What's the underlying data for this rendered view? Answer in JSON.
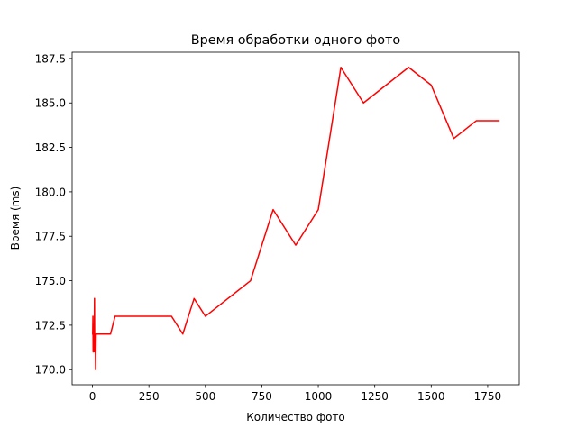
{
  "chart_data": {
    "type": "line",
    "title": "Время обработки одного фото",
    "xlabel": "Количество фото",
    "ylabel": "Время (ms)",
    "xlim": [
      -90,
      1890
    ],
    "ylim": [
      169.15,
      187.85
    ],
    "xticks": [
      0,
      250,
      500,
      750,
      1000,
      1250,
      1500,
      1750
    ],
    "xtick_labels": [
      "0",
      "250",
      "500",
      "750",
      "1000",
      "1250",
      "1500",
      "1750"
    ],
    "yticks": [
      170.0,
      172.5,
      175.0,
      177.5,
      180.0,
      182.5,
      185.0,
      187.5
    ],
    "ytick_labels": [
      "170.0",
      "172.5",
      "175.0",
      "177.5",
      "180.0",
      "182.5",
      "185.0",
      "187.5"
    ],
    "grid": false,
    "legend": "none",
    "series": [
      {
        "color": "#ff0000",
        "x": [
          1,
          2,
          3,
          4,
          5,
          6,
          7,
          8,
          9,
          10,
          12,
          14,
          16,
          18,
          20,
          30,
          50,
          80,
          100,
          200,
          300,
          350,
          400,
          450,
          500,
          700,
          800,
          900,
          1000,
          1100,
          1200,
          1400,
          1500,
          1600,
          1700,
          1800
        ],
        "values": [
          172,
          173,
          171,
          172,
          171,
          172,
          172,
          172,
          174,
          171,
          172,
          170,
          172,
          172,
          172,
          172,
          172,
          172,
          173,
          173,
          173,
          173,
          172,
          174,
          173,
          175,
          179,
          177,
          179,
          187,
          185,
          187,
          186,
          183,
          184,
          184
        ]
      }
    ]
  }
}
